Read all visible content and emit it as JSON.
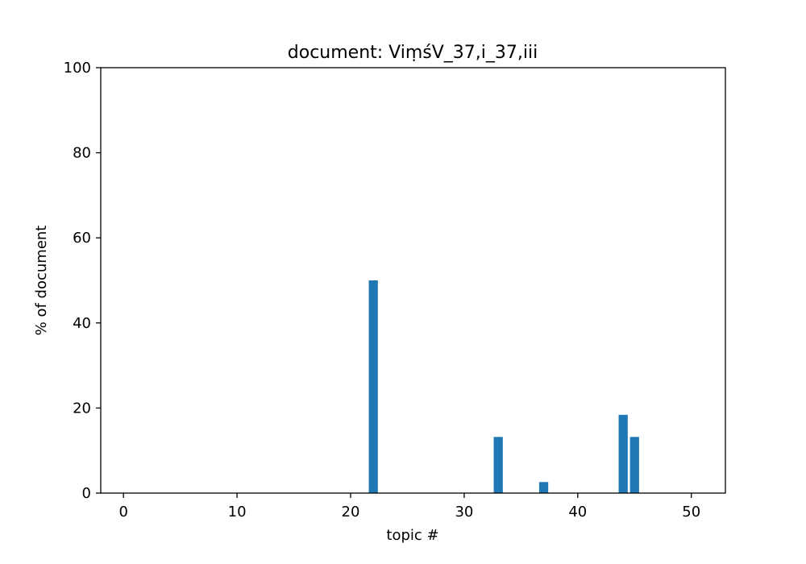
{
  "chart_data": {
    "type": "bar",
    "title": "document: ViṃśV_37,i_37,iii",
    "xlabel": "topic #",
    "ylabel": "% of document",
    "xlim": [
      -2,
      53
    ],
    "ylim": [
      0,
      100
    ],
    "xticks": [
      0,
      10,
      20,
      30,
      40,
      50
    ],
    "yticks": [
      0,
      20,
      40,
      60,
      80,
      100
    ],
    "grid": false,
    "bar_color": "#1f77b4",
    "x": [
      22,
      33,
      37,
      44,
      45
    ],
    "values": [
      50.0,
      13.2,
      2.6,
      18.4,
      13.2
    ]
  }
}
